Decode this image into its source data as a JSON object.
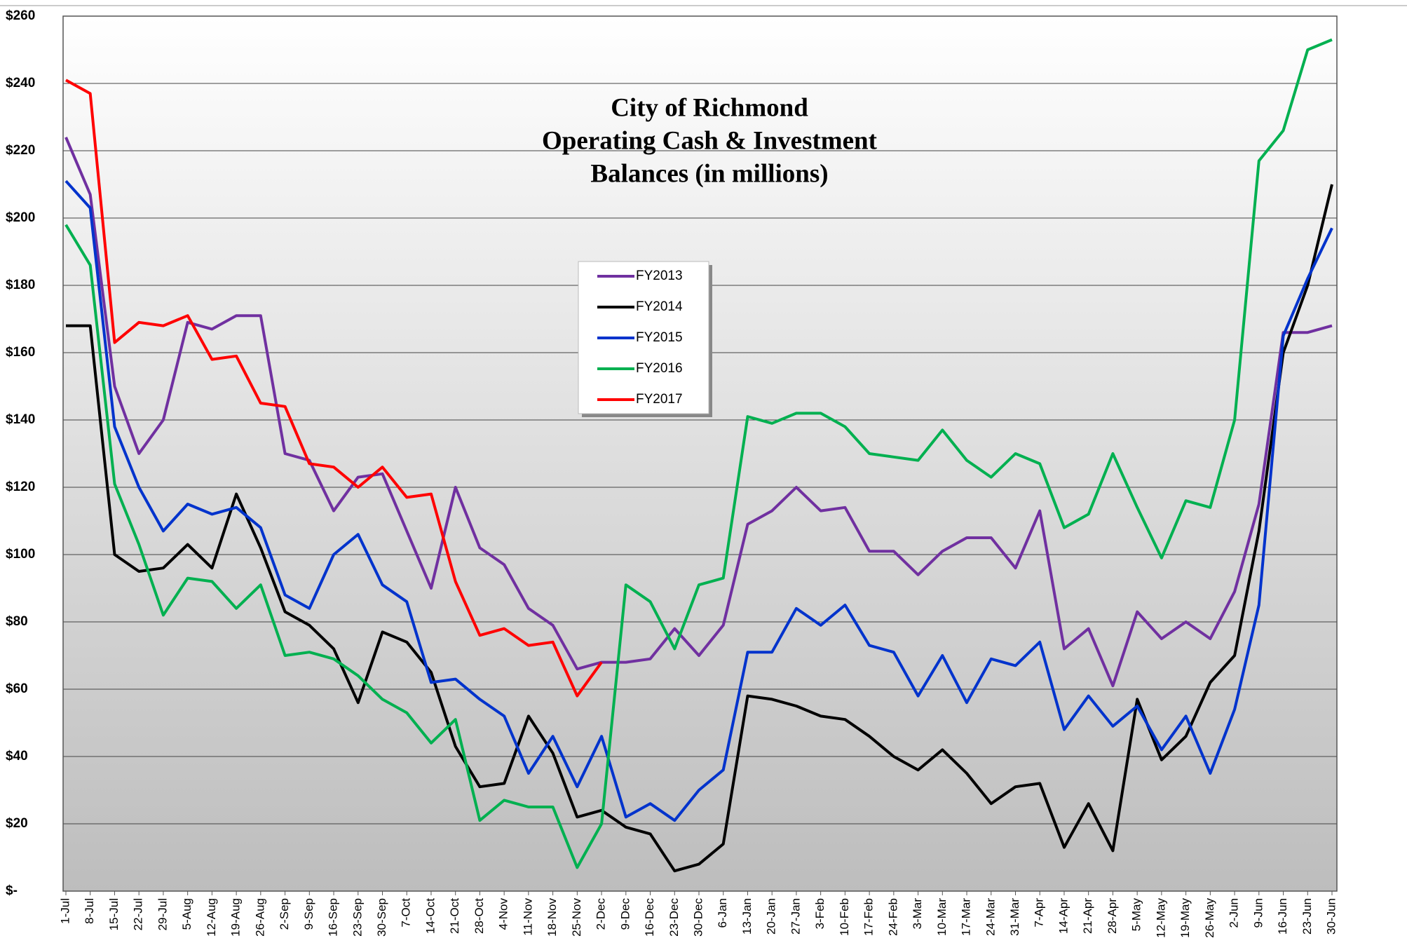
{
  "chart_data": {
    "type": "line",
    "title": [
      "City of Richmond",
      "Operating Cash & Investment",
      "Balances (in millions)"
    ],
    "categories": [
      "1-Jul",
      "8-Jul",
      "15-Jul",
      "22-Jul",
      "29-Jul",
      "5-Aug",
      "12-Aug",
      "19-Aug",
      "26-Aug",
      "2-Sep",
      "9-Sep",
      "16-Sep",
      "23-Sep",
      "30-Sep",
      "7-Oct",
      "14-Oct",
      "21-Oct",
      "28-Oct",
      "4-Nov",
      "11-Nov",
      "18-Nov",
      "25-Nov",
      "2-Dec",
      "9-Dec",
      "16-Dec",
      "23-Dec",
      "30-Dec",
      "6-Jan",
      "13-Jan",
      "20-Jan",
      "27-Jan",
      "3-Feb",
      "10-Feb",
      "17-Feb",
      "24-Feb",
      "3-Mar",
      "10-Mar",
      "17-Mar",
      "24-Mar",
      "31-Mar",
      "7-Apr",
      "14-Apr",
      "21-Apr",
      "28-Apr",
      "5-May",
      "12-May",
      "19-May",
      "26-May",
      "2-Jun",
      "9-Jun",
      "16-Jun",
      "23-Jun",
      "30-Jun"
    ],
    "series": [
      {
        "name": "FY2013",
        "color": "#7030a0",
        "values": [
          224,
          207,
          150,
          130,
          140,
          169,
          167,
          171,
          171,
          130,
          128,
          113,
          123,
          124,
          107,
          90,
          120,
          102,
          97,
          84,
          79,
          66,
          68,
          68,
          69,
          78,
          70,
          79,
          109,
          113,
          120,
          113,
          114,
          101,
          101,
          94,
          101,
          105,
          105,
          96,
          113,
          72,
          78,
          61,
          83,
          75,
          80,
          75,
          89,
          115,
          166,
          166,
          168
        ]
      },
      {
        "name": "FY2014",
        "color": "#000000",
        "values": [
          168,
          168,
          100,
          95,
          96,
          103,
          96,
          118,
          102,
          83,
          79,
          72,
          56,
          77,
          74,
          65,
          43,
          31,
          32,
          52,
          41,
          22,
          24,
          19,
          17,
          6,
          8,
          14,
          58,
          57,
          55,
          52,
          51,
          46,
          40,
          36,
          42,
          35,
          26,
          31,
          32,
          13,
          26,
          12,
          57,
          39,
          46,
          62,
          70,
          107,
          160,
          180,
          210
        ]
      },
      {
        "name": "FY2015",
        "color": "#0033cc",
        "values": [
          211,
          203,
          138,
          120,
          107,
          115,
          112,
          114,
          108,
          88,
          84,
          100,
          106,
          91,
          86,
          62,
          63,
          57,
          52,
          35,
          46,
          31,
          46,
          22,
          26,
          21,
          30,
          36,
          71,
          71,
          84,
          79,
          85,
          73,
          71,
          58,
          70,
          56,
          69,
          67,
          74,
          48,
          58,
          49,
          55,
          42,
          52,
          35,
          54,
          85,
          165,
          182,
          197
        ]
      },
      {
        "name": "FY2016",
        "color": "#00b050",
        "values": [
          198,
          186,
          121,
          103,
          82,
          93,
          92,
          84,
          91,
          70,
          71,
          69,
          64,
          57,
          53,
          44,
          51,
          21,
          27,
          25,
          25,
          7,
          20,
          91,
          86,
          72,
          91,
          93,
          141,
          139,
          142,
          142,
          138,
          130,
          129,
          128,
          137,
          128,
          123,
          130,
          127,
          108,
          112,
          130,
          114,
          99,
          116,
          114,
          140,
          217,
          226,
          250,
          253
        ]
      },
      {
        "name": "FY2017",
        "color": "#ff0000",
        "values": [
          241,
          237,
          163,
          169,
          168,
          171,
          158,
          159,
          145,
          144,
          127,
          126,
          120,
          126,
          117,
          118,
          92,
          76,
          78,
          73,
          74,
          58,
          68,
          null,
          null,
          null,
          null,
          null,
          null,
          null,
          null,
          null,
          null,
          null,
          null,
          null,
          null,
          null,
          null,
          null,
          null,
          null,
          null,
          null,
          null,
          null,
          null,
          null,
          null,
          null,
          null,
          null,
          null
        ]
      }
    ],
    "ylim": [
      0,
      260
    ],
    "yticks": [
      {
        "value": 0,
        "label": "$-"
      },
      {
        "value": 20,
        "label": "$20"
      },
      {
        "value": 40,
        "label": "$40"
      },
      {
        "value": 60,
        "label": "$60"
      },
      {
        "value": 80,
        "label": "$80"
      },
      {
        "value": 100,
        "label": "$100"
      },
      {
        "value": 120,
        "label": "$120"
      },
      {
        "value": 140,
        "label": "$140"
      },
      {
        "value": 160,
        "label": "$160"
      },
      {
        "value": 180,
        "label": "$180"
      },
      {
        "value": 200,
        "label": "$200"
      },
      {
        "value": 220,
        "label": "$220"
      },
      {
        "value": 240,
        "label": "$240"
      },
      {
        "value": 260,
        "label": "$260"
      }
    ],
    "grid": true
  }
}
